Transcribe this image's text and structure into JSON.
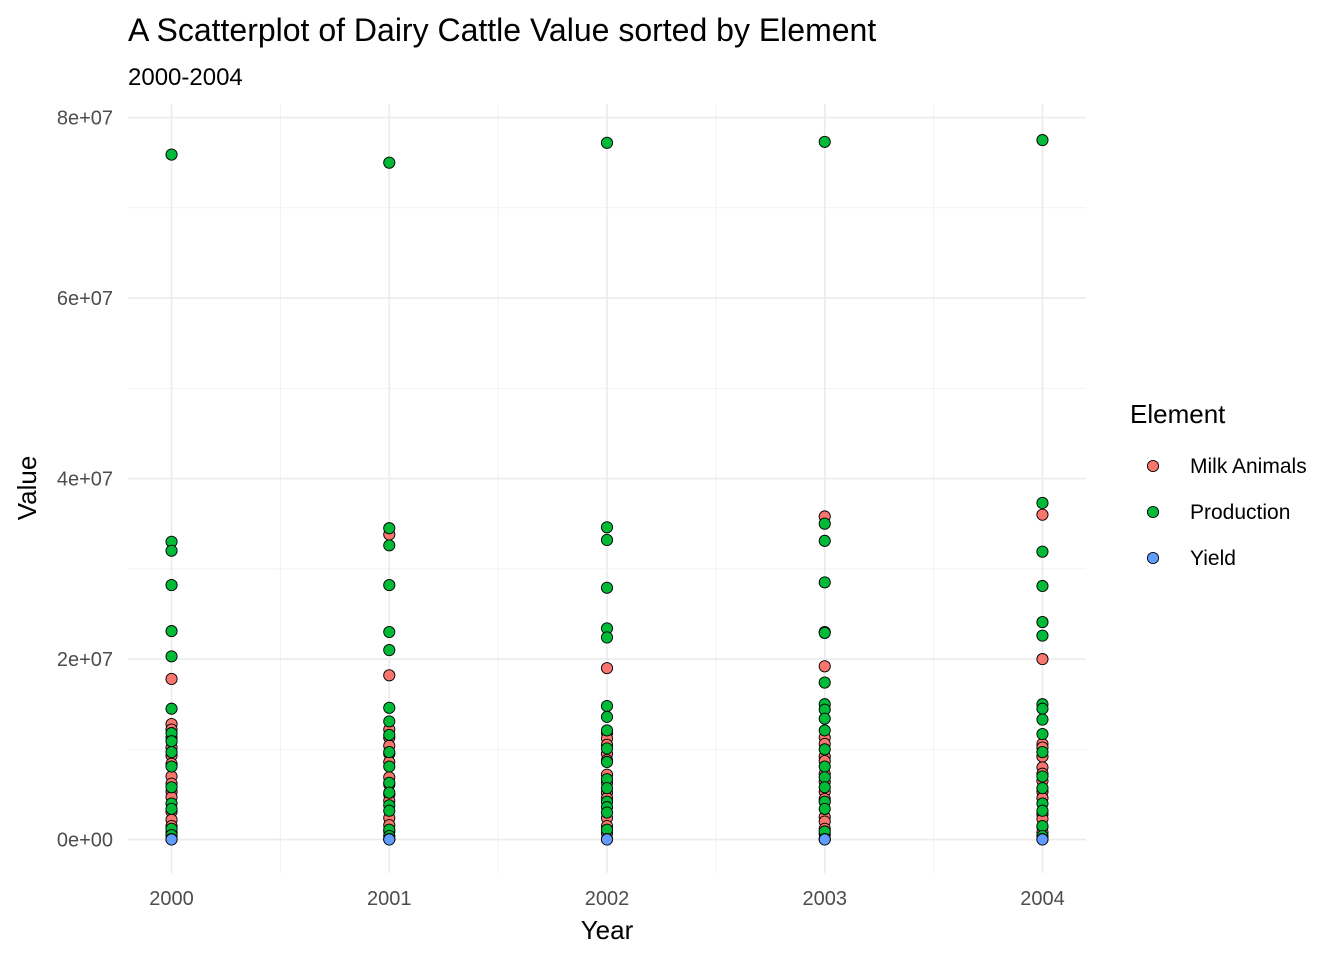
{
  "chart_data": {
    "type": "scatter",
    "title": "A Scatterplot of Dairy Cattle Value sorted by Element",
    "subtitle": "2000-2004",
    "xlabel": "Year",
    "ylabel": "Value",
    "x_ticks": [
      "2000",
      "2001",
      "2002",
      "2003",
      "2004"
    ],
    "y_ticks": [
      {
        "value": 0,
        "label": "0e+00"
      },
      {
        "value": 20000000,
        "label": "2e+07"
      },
      {
        "value": 40000000,
        "label": "4e+07"
      },
      {
        "value": 60000000,
        "label": "6e+07"
      },
      {
        "value": 80000000,
        "label": "8e+07"
      }
    ],
    "xlim": [
      1999.8,
      2004.2
    ],
    "ylim": [
      -3700000,
      81500000
    ],
    "grid": true,
    "legend": {
      "title": "Element",
      "position": "right"
    },
    "series": [
      {
        "name": "Milk Animals",
        "color": "#F8766D",
        "points": [
          {
            "x": 2000,
            "y": 17800000
          },
          {
            "x": 2000,
            "y": 12800000
          },
          {
            "x": 2000,
            "y": 12200000
          },
          {
            "x": 2000,
            "y": 11300000
          },
          {
            "x": 2000,
            "y": 10200000
          },
          {
            "x": 2000,
            "y": 9300000
          },
          {
            "x": 2000,
            "y": 8400000
          },
          {
            "x": 2000,
            "y": 7000000
          },
          {
            "x": 2000,
            "y": 6200000
          },
          {
            "x": 2000,
            "y": 5300000
          },
          {
            "x": 2000,
            "y": 4700000
          },
          {
            "x": 2000,
            "y": 3100000
          },
          {
            "x": 2000,
            "y": 2200000
          },
          {
            "x": 2000,
            "y": 1500000
          },
          {
            "x": 2000,
            "y": 800000
          },
          {
            "x": 2001,
            "y": 33800000
          },
          {
            "x": 2001,
            "y": 18200000
          },
          {
            "x": 2001,
            "y": 12200000
          },
          {
            "x": 2001,
            "y": 11300000
          },
          {
            "x": 2001,
            "y": 10400000
          },
          {
            "x": 2001,
            "y": 9500000
          },
          {
            "x": 2001,
            "y": 8600000
          },
          {
            "x": 2001,
            "y": 6900000
          },
          {
            "x": 2001,
            "y": 6100000
          },
          {
            "x": 2001,
            "y": 5000000
          },
          {
            "x": 2001,
            "y": 4300000
          },
          {
            "x": 2001,
            "y": 2400000
          },
          {
            "x": 2001,
            "y": 1600000
          },
          {
            "x": 2001,
            "y": 900000
          },
          {
            "x": 2002,
            "y": 19000000
          },
          {
            "x": 2002,
            "y": 11800000
          },
          {
            "x": 2002,
            "y": 11200000
          },
          {
            "x": 2002,
            "y": 10500000
          },
          {
            "x": 2002,
            "y": 9500000
          },
          {
            "x": 2002,
            "y": 8800000
          },
          {
            "x": 2002,
            "y": 7200000
          },
          {
            "x": 2002,
            "y": 6300000
          },
          {
            "x": 2002,
            "y": 5200000
          },
          {
            "x": 2002,
            "y": 4600000
          },
          {
            "x": 2002,
            "y": 2400000
          },
          {
            "x": 2002,
            "y": 1500000
          },
          {
            "x": 2002,
            "y": 700000
          },
          {
            "x": 2003,
            "y": 35800000
          },
          {
            "x": 2003,
            "y": 19200000
          },
          {
            "x": 2003,
            "y": 11300000
          },
          {
            "x": 2003,
            "y": 10600000
          },
          {
            "x": 2003,
            "y": 9200000
          },
          {
            "x": 2003,
            "y": 8700000
          },
          {
            "x": 2003,
            "y": 7300000
          },
          {
            "x": 2003,
            "y": 6400000
          },
          {
            "x": 2003,
            "y": 5300000
          },
          {
            "x": 2003,
            "y": 4500000
          },
          {
            "x": 2003,
            "y": 2500000
          },
          {
            "x": 2003,
            "y": 2000000
          },
          {
            "x": 2003,
            "y": 1200000
          },
          {
            "x": 2003,
            "y": 600000
          },
          {
            "x": 2004,
            "y": 36000000
          },
          {
            "x": 2004,
            "y": 20000000
          },
          {
            "x": 2004,
            "y": 10600000
          },
          {
            "x": 2004,
            "y": 10200000
          },
          {
            "x": 2004,
            "y": 9200000
          },
          {
            "x": 2004,
            "y": 8000000
          },
          {
            "x": 2004,
            "y": 7300000
          },
          {
            "x": 2004,
            "y": 6500000
          },
          {
            "x": 2004,
            "y": 5300000
          },
          {
            "x": 2004,
            "y": 4600000
          },
          {
            "x": 2004,
            "y": 2800000
          },
          {
            "x": 2004,
            "y": 2300000
          },
          {
            "x": 2004,
            "y": 1400000
          },
          {
            "x": 2004,
            "y": 800000
          }
        ]
      },
      {
        "name": "Production",
        "color": "#00BA38",
        "points": [
          {
            "x": 2000,
            "y": 75900000
          },
          {
            "x": 2000,
            "y": 33000000
          },
          {
            "x": 2000,
            "y": 32000000
          },
          {
            "x": 2000,
            "y": 28200000
          },
          {
            "x": 2000,
            "y": 23100000
          },
          {
            "x": 2000,
            "y": 20300000
          },
          {
            "x": 2000,
            "y": 14500000
          },
          {
            "x": 2000,
            "y": 11800000
          },
          {
            "x": 2000,
            "y": 10900000
          },
          {
            "x": 2000,
            "y": 9700000
          },
          {
            "x": 2000,
            "y": 8100000
          },
          {
            "x": 2000,
            "y": 5800000
          },
          {
            "x": 2000,
            "y": 4000000
          },
          {
            "x": 2000,
            "y": 3400000
          },
          {
            "x": 2000,
            "y": 1200000
          },
          {
            "x": 2000,
            "y": 500000
          },
          {
            "x": 2001,
            "y": 75000000
          },
          {
            "x": 2001,
            "y": 34500000
          },
          {
            "x": 2001,
            "y": 32600000
          },
          {
            "x": 2001,
            "y": 28200000
          },
          {
            "x": 2001,
            "y": 23000000
          },
          {
            "x": 2001,
            "y": 21000000
          },
          {
            "x": 2001,
            "y": 14600000
          },
          {
            "x": 2001,
            "y": 13100000
          },
          {
            "x": 2001,
            "y": 11600000
          },
          {
            "x": 2001,
            "y": 9700000
          },
          {
            "x": 2001,
            "y": 8100000
          },
          {
            "x": 2001,
            "y": 6300000
          },
          {
            "x": 2001,
            "y": 5200000
          },
          {
            "x": 2001,
            "y": 3800000
          },
          {
            "x": 2001,
            "y": 3200000
          },
          {
            "x": 2001,
            "y": 1100000
          },
          {
            "x": 2001,
            "y": 400000
          },
          {
            "x": 2002,
            "y": 77200000
          },
          {
            "x": 2002,
            "y": 34600000
          },
          {
            "x": 2002,
            "y": 33200000
          },
          {
            "x": 2002,
            "y": 27900000
          },
          {
            "x": 2002,
            "y": 23400000
          },
          {
            "x": 2002,
            "y": 22400000
          },
          {
            "x": 2002,
            "y": 14800000
          },
          {
            "x": 2002,
            "y": 13600000
          },
          {
            "x": 2002,
            "y": 12100000
          },
          {
            "x": 2002,
            "y": 10100000
          },
          {
            "x": 2002,
            "y": 8600000
          },
          {
            "x": 2002,
            "y": 6700000
          },
          {
            "x": 2002,
            "y": 5700000
          },
          {
            "x": 2002,
            "y": 4200000
          },
          {
            "x": 2002,
            "y": 3600000
          },
          {
            "x": 2002,
            "y": 3000000
          },
          {
            "x": 2002,
            "y": 1100000
          },
          {
            "x": 2003,
            "y": 77300000
          },
          {
            "x": 2003,
            "y": 35000000
          },
          {
            "x": 2003,
            "y": 33100000
          },
          {
            "x": 2003,
            "y": 28500000
          },
          {
            "x": 2003,
            "y": 23000000
          },
          {
            "x": 2003,
            "y": 22900000
          },
          {
            "x": 2003,
            "y": 17400000
          },
          {
            "x": 2003,
            "y": 15000000
          },
          {
            "x": 2003,
            "y": 14400000
          },
          {
            "x": 2003,
            "y": 13400000
          },
          {
            "x": 2003,
            "y": 12100000
          },
          {
            "x": 2003,
            "y": 10000000
          },
          {
            "x": 2003,
            "y": 8100000
          },
          {
            "x": 2003,
            "y": 6900000
          },
          {
            "x": 2003,
            "y": 5800000
          },
          {
            "x": 2003,
            "y": 4200000
          },
          {
            "x": 2003,
            "y": 3400000
          },
          {
            "x": 2003,
            "y": 900000
          },
          {
            "x": 2004,
            "y": 77500000
          },
          {
            "x": 2004,
            "y": 37300000
          },
          {
            "x": 2004,
            "y": 31900000
          },
          {
            "x": 2004,
            "y": 28100000
          },
          {
            "x": 2004,
            "y": 24100000
          },
          {
            "x": 2004,
            "y": 22600000
          },
          {
            "x": 2004,
            "y": 15000000
          },
          {
            "x": 2004,
            "y": 14500000
          },
          {
            "x": 2004,
            "y": 13300000
          },
          {
            "x": 2004,
            "y": 11700000
          },
          {
            "x": 2004,
            "y": 9700000
          },
          {
            "x": 2004,
            "y": 7000000
          },
          {
            "x": 2004,
            "y": 5700000
          },
          {
            "x": 2004,
            "y": 4000000
          },
          {
            "x": 2004,
            "y": 3200000
          },
          {
            "x": 2004,
            "y": 1500000
          },
          {
            "x": 2004,
            "y": 400000
          }
        ]
      },
      {
        "name": "Yield",
        "color": "#619CFF",
        "points": [
          {
            "x": 2000,
            "y": 60000
          },
          {
            "x": 2000,
            "y": 40000
          },
          {
            "x": 2000,
            "y": 20000
          },
          {
            "x": 2001,
            "y": 60000
          },
          {
            "x": 2001,
            "y": 40000
          },
          {
            "x": 2001,
            "y": 20000
          },
          {
            "x": 2002,
            "y": 60000
          },
          {
            "x": 2002,
            "y": 40000
          },
          {
            "x": 2002,
            "y": 20000
          },
          {
            "x": 2003,
            "y": 60000
          },
          {
            "x": 2003,
            "y": 40000
          },
          {
            "x": 2003,
            "y": 20000
          },
          {
            "x": 2004,
            "y": 60000
          },
          {
            "x": 2004,
            "y": 40000
          },
          {
            "x": 2004,
            "y": 20000
          }
        ]
      }
    ]
  }
}
